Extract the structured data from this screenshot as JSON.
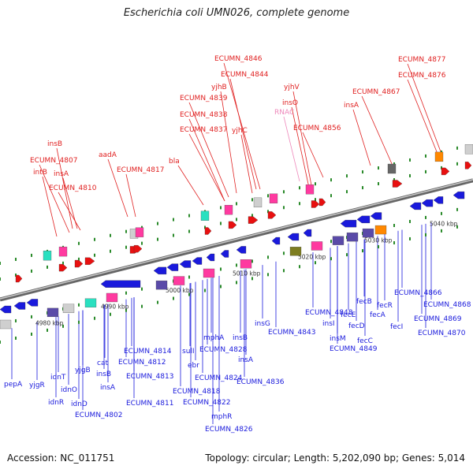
{
  "title": "Escherichia coli UMN026, complete genome",
  "footer": {
    "accession": "Accession: NC_011751",
    "topology": "Topology: circular; Length: 5,202,090 bp; Genes: 5,014"
  },
  "colors": {
    "forward_label": "#e02020",
    "reverse_label": "#1a1adc",
    "rna_label": "#ee88bb",
    "backbone": "#8a8a8a"
  },
  "ticks": [
    "4980 kbp",
    "4990 kbp",
    "5000 kbp",
    "5010 kbp",
    "5020 kbp",
    "5030 kbp",
    "5040 kbp"
  ],
  "top_labels": [
    "ECUMN_4846",
    "ECUMN_4844",
    "yjhB",
    "ECUMN_4839",
    "ECUMN_4838",
    "ECUMN_4837",
    "yjhC",
    "yjhV",
    "insO",
    "RNAC",
    "ECUMN_4856",
    "insA",
    "ECUMN_4867",
    "ECUMN_4877",
    "ECUMN_4876",
    "insB",
    "ECUMN_4807",
    "intB",
    "insA",
    "ECUMN_4810",
    "aadA",
    "ECUMN_4817",
    "bla"
  ],
  "bottom_labels": [
    "pepA",
    "yjgR",
    "idnT",
    "idnO",
    "idnR",
    "idnD",
    "yjgB",
    "cat",
    "insB",
    "insA",
    "ECUMN_4802",
    "ECUMN_4811",
    "ECUMN_4813",
    "ECUMN_4812",
    "ECUMN_4814",
    "sulI",
    "ebr",
    "ECUMN_4818",
    "ECUMN_4822",
    "ECUMN_4824",
    "mphA",
    "ECUMN_4828",
    "mphR",
    "ECUMN_4826",
    "insB",
    "insA",
    "ECUMN_4836",
    "insG",
    "ECUMN_4843",
    "ECUMN_4848",
    "insI",
    "insM",
    "ECUMN_4849",
    "fecB",
    "fecE",
    "fecD",
    "fecC",
    "fecR",
    "fecA",
    "fecI",
    "ECUMN_4866",
    "ECUMN_4868",
    "ECUMN_4869",
    "ECUMN_4870"
  ]
}
